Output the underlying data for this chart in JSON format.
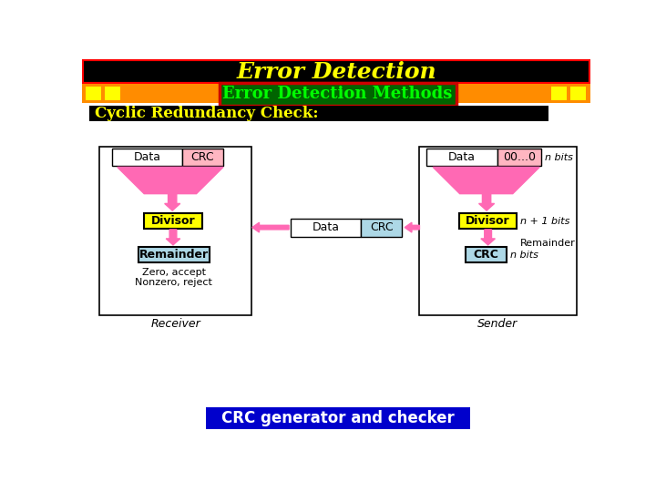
{
  "title": "Error Detection",
  "subtitle": "Error Detection Methods",
  "section": "Cyclic Redundancy Check:",
  "footer": "CRC generator and checker",
  "bg_color": "#ffffff",
  "title_bg": "#000000",
  "title_color": "#ffff00",
  "subtitle_bg": "#006400",
  "subtitle_color": "#00ff00",
  "subtitle_border": "#cc0000",
  "orange_bar_color": "#ff8c00",
  "yellow_accent": "#ffff00",
  "section_bg": "#000000",
  "section_color": "#ffff00",
  "footer_bg": "#0000cc",
  "footer_color": "#ffffff",
  "arrow_color": "#ff69b4",
  "divisor_color": "#ffff00",
  "crc_box_color": "#ffb6c1",
  "data_box_color": "#ffffff",
  "cyan_box": "#add8e6"
}
